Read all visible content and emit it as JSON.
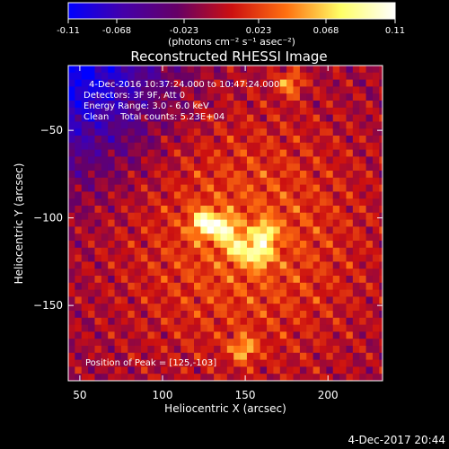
{
  "chart_data": {
    "type": "heatmap",
    "title": "Reconstructed RHESSI Image",
    "xlabel": "Heliocentric X (arcsec)",
    "ylabel": "Heliocentric Y (arcsec)",
    "xlim": [
      43,
      233
    ],
    "ylim": [
      -193,
      -13
    ],
    "x_ticks": [
      50,
      100,
      150,
      200
    ],
    "y_ticks": [
      -150,
      -100,
      -50
    ],
    "colorbar": {
      "min": -0.11,
      "max": 0.11,
      "ticks": [
        "-0.11",
        "-0.068",
        "-0.023",
        "0.023",
        "0.068",
        "0.11"
      ],
      "unit_label": "(photons cm⁻² s⁻¹ asec⁻²)",
      "colors": [
        "#0000ff",
        "#4400aa",
        "#660066",
        "#cc1010",
        "#ff7010",
        "#ffff66",
        "#ffffff"
      ]
    },
    "annotations": [
      "4-Dec-2016 10:37:24.000 to 10:47:24.000",
      "Detectors: 3F 9F, Att 0",
      "Energy Range: 3.0 - 6.0 keV",
      "Clean    Total counts: 5.23E+04"
    ],
    "peak_label": "Position of Peak = [125,-103]",
    "peaks": [
      {
        "x": 125,
        "y": -103,
        "value": 0.11
      },
      {
        "x": 137,
        "y": -106,
        "value": 0.1
      },
      {
        "x": 162,
        "y": -109,
        "value": 0.09
      },
      {
        "x": 158,
        "y": -121,
        "value": 0.09
      },
      {
        "x": 146,
        "y": -117,
        "value": 0.08
      },
      {
        "x": 177,
        "y": -23,
        "value": 0.08
      },
      {
        "x": 149,
        "y": -175,
        "value": 0.08
      }
    ]
  },
  "footer": {
    "timestamp": "4-Dec-2017 20:44"
  }
}
